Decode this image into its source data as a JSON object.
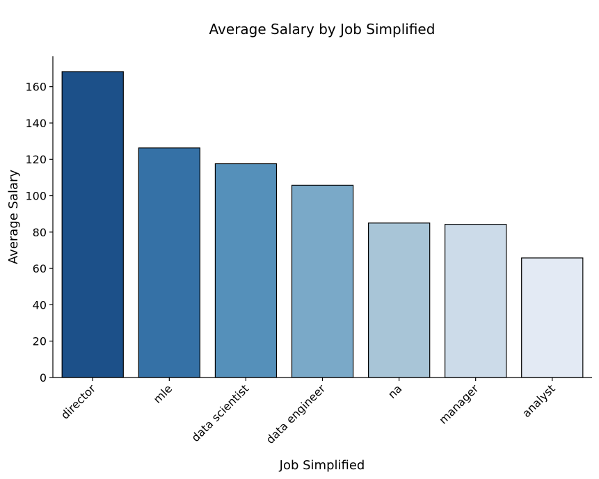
{
  "chart_data": {
    "type": "bar",
    "title": "Average Salary by Job Simplified",
    "xlabel": "Job Simplified",
    "ylabel": "Average Salary",
    "categories": [
      "director",
      "mle",
      "data scientist",
      "data engineer",
      "na",
      "manager",
      "analyst"
    ],
    "values": [
      168.3,
      126.3,
      117.6,
      105.8,
      85.0,
      84.3,
      65.8
    ],
    "colors": [
      "#1c5089",
      "#3571a6",
      "#5590ba",
      "#7aa9c8",
      "#a8c5d7",
      "#ccdbe9",
      "#e3eaf4"
    ],
    "ylim": [
      0,
      176.7
    ],
    "yticks": [
      0,
      20,
      40,
      60,
      80,
      100,
      120,
      140,
      160
    ],
    "grid": false,
    "legend": "none"
  }
}
